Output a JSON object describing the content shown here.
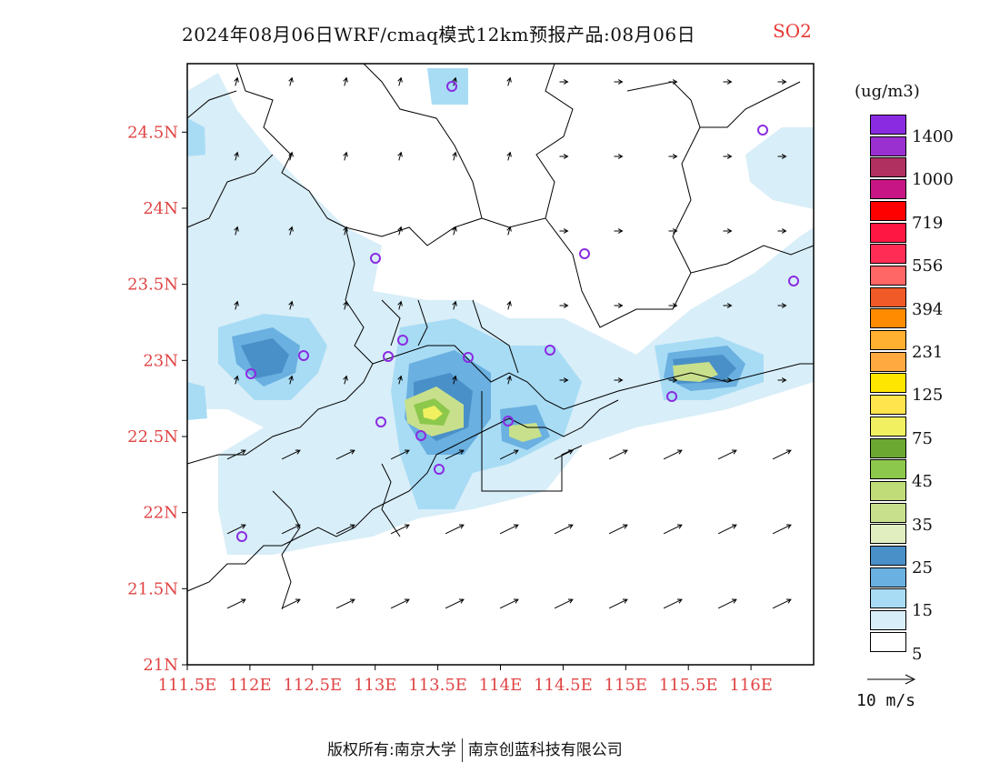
{
  "title": {
    "main": "2024年08月06日WRF/cmaq模式12km预报产品:08月06日",
    "pollutant": "SO2"
  },
  "axes": {
    "lat_labels": [
      "24.5N",
      "24N",
      "23.5N",
      "23N",
      "22.5N",
      "22N",
      "21.5N",
      "21N"
    ],
    "lon_labels": [
      "111.5E",
      "112E",
      "112.5E",
      "113E",
      "113.5E",
      "114E",
      "114.5E",
      "115E",
      "115.5E",
      "116E"
    ],
    "lon_range": [
      111.5,
      116.5
    ],
    "lat_range": [
      21.0,
      24.95
    ]
  },
  "legend": {
    "unit": "(ug/m3)",
    "labels": [
      "1400",
      "1000",
      "719",
      "556",
      "394",
      "231",
      "125",
      "75",
      "45",
      "35",
      "25",
      "15",
      "5"
    ],
    "colors": [
      "#8a2be2",
      "#9b30d0",
      "#b03060",
      "#c71585",
      "#ff0000",
      "#ff1744",
      "#ff2d55",
      "#ff6666",
      "#f05a28",
      "#ff8c00",
      "#ffb030",
      "#ffa940",
      "#ffe600",
      "#ffe44d",
      "#f0f060",
      "#6aa832",
      "#8cc84b",
      "#c0dc78",
      "#c8e08c",
      "#e0eec0",
      "#4a90c8",
      "#6ab0e0",
      "#a8dcf5",
      "#d8eef8",
      "#ffffff"
    ]
  },
  "wind_reference": {
    "label": "10 m/s"
  },
  "stations_icon": "circle-marker-icon",
  "map_colors": {
    "frame": "#000000",
    "boundary": "#000000",
    "arrow": "#000000",
    "tick_label": "#e04444"
  },
  "copyright": {
    "owner_label": "版权所有:",
    "org1": "南京大学",
    "org2": "南京创蓝科技有限公司"
  }
}
